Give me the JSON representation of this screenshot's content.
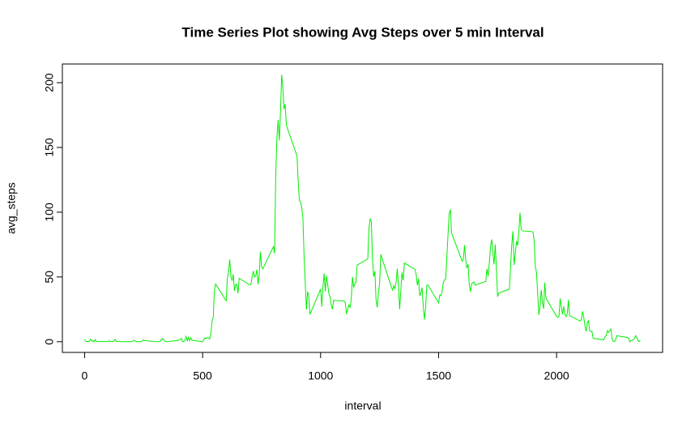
{
  "chart_data": {
    "type": "line",
    "title": "Time Series Plot showing Avg Steps over 5 min Interval",
    "x_label": "interval",
    "y_label": "avg_steps",
    "x": [
      0,
      5,
      10,
      15,
      20,
      25,
      30,
      35,
      40,
      45,
      50,
      55,
      100,
      105,
      110,
      115,
      120,
      125,
      130,
      135,
      140,
      145,
      150,
      155,
      200,
      210,
      220,
      230,
      240,
      250,
      255,
      300,
      310,
      320,
      330,
      340,
      350,
      400,
      410,
      415,
      420,
      425,
      430,
      435,
      440,
      445,
      450,
      455,
      500,
      505,
      510,
      515,
      520,
      525,
      530,
      535,
      540,
      545,
      550,
      555,
      600,
      605,
      610,
      615,
      620,
      625,
      630,
      635,
      640,
      645,
      650,
      655,
      700,
      705,
      710,
      715,
      720,
      725,
      730,
      735,
      740,
      745,
      750,
      755,
      800,
      805,
      810,
      815,
      820,
      825,
      830,
      835,
      840,
      845,
      850,
      855,
      900,
      905,
      910,
      915,
      920,
      925,
      930,
      935,
      940,
      945,
      950,
      955,
      1000,
      1005,
      1010,
      1015,
      1020,
      1025,
      1030,
      1035,
      1040,
      1045,
      1050,
      1055,
      1100,
      1105,
      1110,
      1115,
      1120,
      1125,
      1130,
      1135,
      1140,
      1145,
      1150,
      1155,
      1200,
      1205,
      1210,
      1215,
      1220,
      1225,
      1230,
      1235,
      1240,
      1245,
      1250,
      1255,
      1300,
      1305,
      1310,
      1315,
      1320,
      1325,
      1330,
      1335,
      1340,
      1345,
      1350,
      1355,
      1400,
      1405,
      1410,
      1415,
      1420,
      1425,
      1430,
      1435,
      1440,
      1445,
      1450,
      1455,
      1500,
      1505,
      1510,
      1515,
      1520,
      1525,
      1530,
      1535,
      1540,
      1545,
      1550,
      1555,
      1600,
      1605,
      1610,
      1615,
      1620,
      1625,
      1630,
      1635,
      1640,
      1645,
      1650,
      1655,
      1700,
      1705,
      1710,
      1715,
      1720,
      1725,
      1730,
      1735,
      1740,
      1745,
      1750,
      1755,
      1800,
      1805,
      1810,
      1815,
      1820,
      1825,
      1830,
      1835,
      1840,
      1845,
      1850,
      1855,
      1900,
      1905,
      1910,
      1915,
      1920,
      1925,
      1930,
      1935,
      1940,
      1945,
      1950,
      1955,
      2000,
      2005,
      2010,
      2015,
      2020,
      2025,
      2030,
      2035,
      2040,
      2045,
      2050,
      2055,
      2100,
      2105,
      2110,
      2115,
      2120,
      2125,
      2130,
      2135,
      2140,
      2145,
      2150,
      2155,
      2200,
      2205,
      2210,
      2215,
      2220,
      2225,
      2230,
      2235,
      2240,
      2245,
      2250,
      2255,
      2300,
      2305,
      2310,
      2315,
      2320,
      2325,
      2330,
      2335,
      2340,
      2345,
      2350,
      2355
    ],
    "series": [
      {
        "name": "avg_steps",
        "color": "#00ee00",
        "values": [
          1.7,
          0.3,
          0.1,
          0.2,
          0.1,
          2.1,
          0.5,
          0.9,
          0,
          1.5,
          0.3,
          0.1,
          0.3,
          0.7,
          0.2,
          0.3,
          0,
          1.1,
          1.8,
          0.2,
          0.2,
          0.4,
          0.3,
          0,
          0,
          1.1,
          0,
          0,
          0,
          1.5,
          0.9,
          0,
          0,
          0.2,
          2.6,
          0.5,
          0,
          1.2,
          2.6,
          0,
          0.3,
          0.9,
          4.1,
          0.7,
          3.5,
          0.8,
          3.1,
          1.1,
          0,
          1.6,
          3,
          2.2,
          3.3,
          3,
          2.1,
          6.1,
          16,
          18.3,
          39.5,
          44.5,
          31.5,
          49.3,
          53.8,
          63.5,
          50,
          47.1,
          52.2,
          39.3,
          44,
          44.2,
          37.4,
          49,
          43.8,
          44.4,
          50.5,
          54.5,
          49.9,
          51,
          55.7,
          44.3,
          52.3,
          69.5,
          57.8,
          56.2,
          73.4,
          68.2,
          129.4,
          157.5,
          171.2,
          155.4,
          177.3,
          206.2,
          195.9,
          179.6,
          183.4,
          167,
          143.5,
          124,
          109.1,
          108.1,
          103.7,
          95.9,
          66.2,
          45.2,
          24.8,
          38.8,
          35,
          21.1,
          40.6,
          27,
          42.4,
          52.7,
          38.9,
          50.8,
          44.3,
          37.4,
          34.7,
          28.3,
          25.1,
          31.9,
          31.4,
          29.7,
          21.3,
          25.5,
          28.4,
          26.5,
          33.4,
          50,
          42,
          44.6,
          46,
          59.2,
          63.9,
          87.7,
          94.8,
          92.8,
          63.4,
          50.2,
          54.5,
          32.4,
          26.5,
          37.7,
          45.1,
          67.3,
          42.3,
          39.9,
          43.3,
          41,
          46.2,
          56.4,
          42.8,
          25.1,
          40,
          53.5,
          47.3,
          60.8,
          55.8,
          52,
          43.6,
          48.7,
          35.5,
          37.5,
          41.8,
          27.5,
          17.1,
          26.1,
          43.6,
          43.8,
          30,
          36.1,
          35.5,
          38.8,
          46,
          47.8,
          48.1,
          65.3,
          82.9,
          98.7,
          102.1,
          84,
          62.1,
          64.1,
          74.5,
          63.2,
          56.9,
          59.8,
          43.9,
          38.6,
          44.7,
          45.5,
          46.2,
          43.7,
          46.6,
          56.3,
          50.7,
          61.2,
          73.4,
          79,
          68.9,
          59.7,
          75.1,
          56.5,
          34.8,
          37.5,
          40.7,
          58,
          74.7,
          85.3,
          59.3,
          67.8,
          77.7,
          74.2,
          85.3,
          99.5,
          86.6,
          85.6,
          84.9,
          77.8,
          58,
          53.4,
          36.3,
          20.7,
          27.4,
          40,
          30.2,
          25.5,
          45.7,
          33.5,
          19.6,
          19,
          19.3,
          33.3,
          26.8,
          21.2,
          27.3,
          21.3,
          19.5,
          21.3,
          32.3,
          20.2,
          15.9,
          17.2,
          23.5,
          19.2,
          12.5,
          8,
          14.7,
          16.3,
          8.7,
          7.8,
          8.1,
          2.6,
          1.5,
          3.7,
          4.8,
          8.5,
          7.1,
          8.7,
          9.8,
          2.2,
          0.3,
          0.1,
          1.6,
          4.6,
          3.3,
          2.8,
          0,
          0.8,
          1,
          1.6,
          2.6,
          4.7,
          3.3,
          0.6,
          0.2,
          1.1
        ]
      }
    ],
    "xlim": [
      -94.2,
      2449.2
    ],
    "ylim": [
      -8.25,
      214.4
    ],
    "xticks": [
      0,
      500,
      1000,
      1500,
      2000
    ],
    "yticks": [
      0,
      50,
      100,
      150,
      200
    ]
  }
}
